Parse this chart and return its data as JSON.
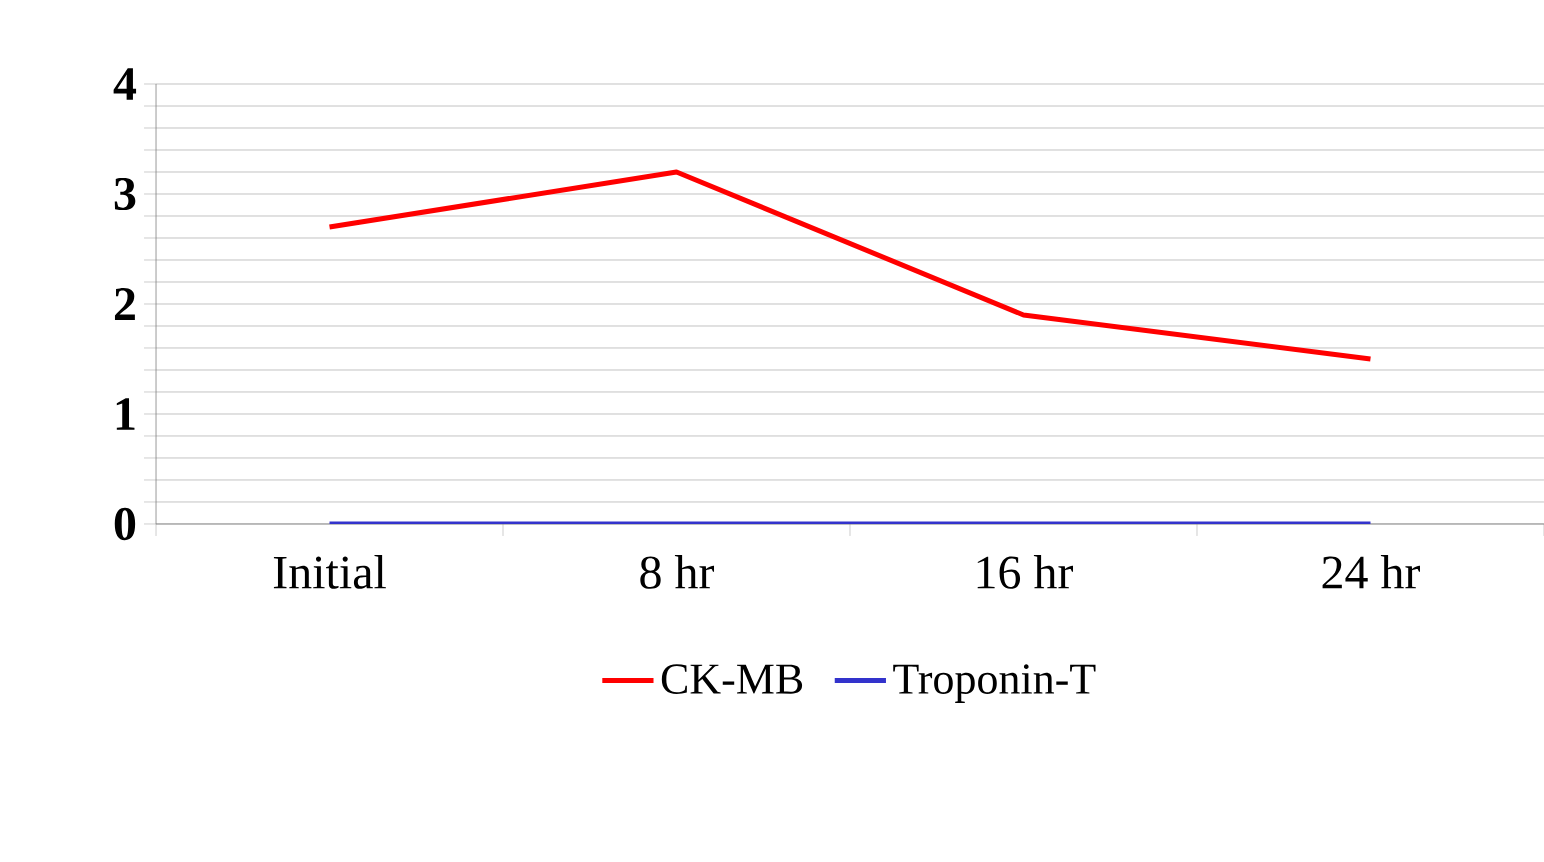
{
  "chart_data": {
    "type": "line",
    "categories": [
      "Initial",
      "8 hr",
      "16 hr",
      "24 hr"
    ],
    "series": [
      {
        "name": "CK-MB",
        "color": "#ff0000",
        "values": [
          2.7,
          3.2,
          1.9,
          1.5
        ]
      },
      {
        "name": "Troponin-T",
        "color": "#3333cc",
        "values": [
          0,
          0,
          0,
          0
        ]
      }
    ],
    "ylim": [
      0,
      4
    ],
    "yticks": [
      0,
      1,
      2,
      3,
      4
    ],
    "grid": "y",
    "legend": "bottom",
    "line_style": "solid",
    "marker": "none"
  }
}
